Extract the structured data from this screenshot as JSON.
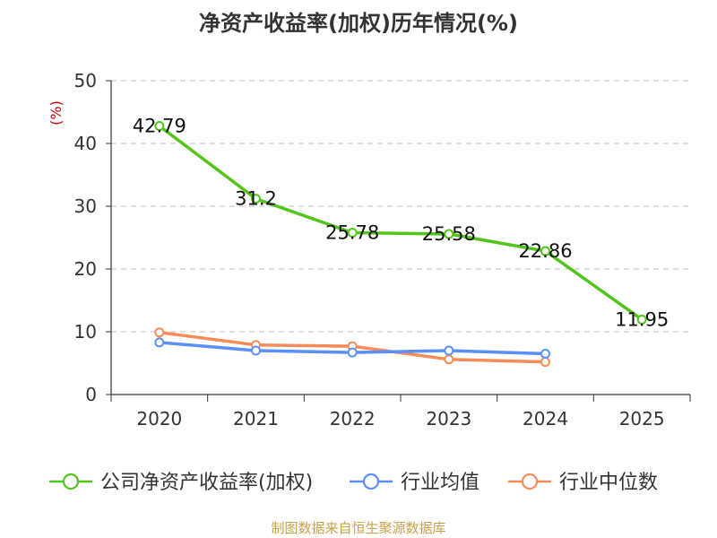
{
  "chart_data": {
    "type": "line",
    "title": "净资产收益率(加权)历年情况(%)",
    "ylabel": "(%)",
    "xlabel": "",
    "ylim": [
      0,
      50
    ],
    "yticks": [
      0,
      10,
      20,
      30,
      40,
      50
    ],
    "categories": [
      "2020",
      "2021",
      "2022",
      "2023",
      "2024",
      "2025"
    ],
    "grid": true,
    "legend_position": "bottom",
    "series": [
      {
        "name": "公司净资产收益率(加权)",
        "color": "#52c41a",
        "values": [
          42.79,
          31.2,
          25.78,
          25.58,
          22.86,
          11.95
        ],
        "show_labels": true
      },
      {
        "name": "行业均值",
        "color": "#5b8ff9",
        "values": [
          8.3,
          7.0,
          6.7,
          7.0,
          6.5,
          null
        ],
        "show_labels": false
      },
      {
        "name": "行业中位数",
        "color": "#f58c5a",
        "values": [
          9.9,
          7.9,
          7.7,
          5.6,
          5.2,
          null
        ],
        "show_labels": false
      }
    ],
    "data_labels": [
      "42.79",
      "31.2",
      "25.78",
      "25.58",
      "22.86",
      "11.95"
    ]
  },
  "footer": {
    "source": "制图数据来自恒生聚源数据库"
  }
}
